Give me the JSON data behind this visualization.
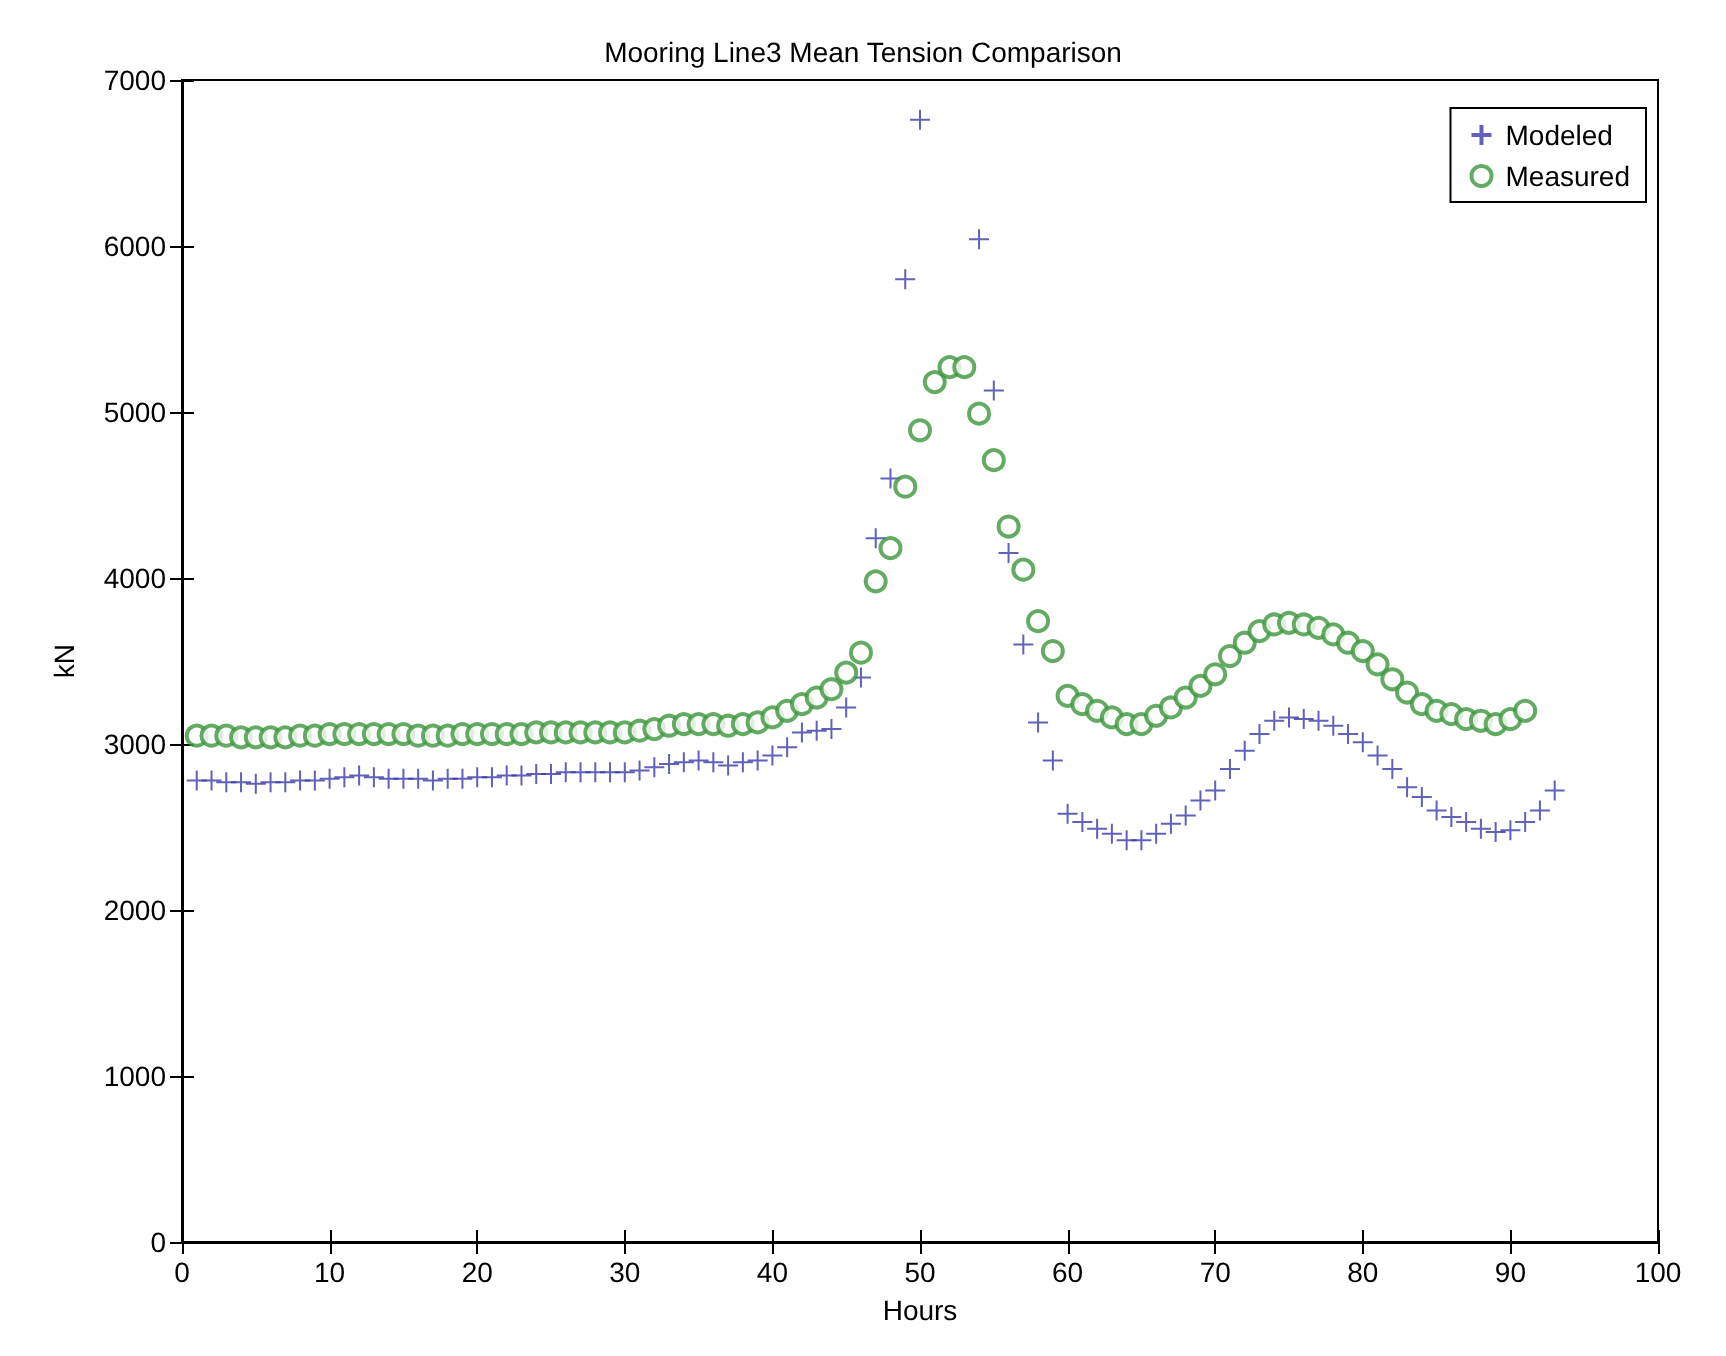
{
  "chart_data": {
    "type": "scatter",
    "title": "Mooring Line3 Mean Tension Comparison",
    "xlabel": "Hours",
    "ylabel": "kN",
    "xlim": [
      0,
      100
    ],
    "xticks": [
      0,
      10,
      20,
      30,
      40,
      50,
      60,
      70,
      80,
      90,
      100
    ],
    "ylim": [
      0,
      7000
    ],
    "yticks": [
      0,
      1000,
      2000,
      3000,
      4000,
      5000,
      6000,
      7000
    ],
    "grid": false,
    "legend": "top right",
    "series": [
      {
        "name": "Modeled",
        "color": "#3a3aa8",
        "marker": "cross",
        "x": [
          1,
          2,
          3,
          4,
          5,
          6,
          7,
          8,
          9,
          10,
          11,
          12,
          13,
          14,
          15,
          16,
          17,
          18,
          19,
          20,
          21,
          22,
          23,
          24,
          25,
          26,
          27,
          28,
          29,
          30,
          31,
          32,
          33,
          34,
          35,
          36,
          37,
          38,
          39,
          40,
          41,
          42,
          43,
          44,
          45,
          46,
          47,
          48,
          49,
          50,
          54,
          55,
          56,
          57,
          58,
          59,
          60,
          61,
          62,
          63,
          64,
          65,
          66,
          67,
          68,
          69,
          70,
          71,
          72,
          73,
          74,
          75,
          76,
          77,
          78,
          79,
          80,
          81,
          82,
          83,
          84,
          85,
          86,
          87,
          88,
          89,
          90,
          91,
          92,
          93
        ],
        "values": [
          2780,
          2780,
          2770,
          2770,
          2760,
          2770,
          2770,
          2780,
          2780,
          2790,
          2800,
          2810,
          2800,
          2790,
          2790,
          2790,
          2780,
          2790,
          2790,
          2800,
          2800,
          2810,
          2810,
          2820,
          2820,
          2830,
          2830,
          2830,
          2830,
          2830,
          2840,
          2860,
          2880,
          2890,
          2900,
          2890,
          2870,
          2890,
          2900,
          2930,
          2980,
          3070,
          3080,
          3090,
          3220,
          3400,
          4240,
          4600,
          5800,
          6760,
          6040,
          5130,
          4150,
          3600,
          3130,
          2900,
          2580,
          2530,
          2490,
          2460,
          2420,
          2420,
          2460,
          2520,
          2570,
          2660,
          2720,
          2850,
          2960,
          3060,
          3140,
          3160,
          3150,
          3140,
          3110,
          3060,
          3010,
          2930,
          2850,
          2740,
          2680,
          2600,
          2560,
          2530,
          2490,
          2470,
          2480,
          2530,
          2600,
          2720
        ]
      },
      {
        "name": "Measured",
        "color": "#3c963c",
        "marker": "circle",
        "x": [
          1,
          2,
          3,
          4,
          5,
          6,
          7,
          8,
          9,
          10,
          11,
          12,
          13,
          14,
          15,
          16,
          17,
          18,
          19,
          20,
          21,
          22,
          23,
          24,
          25,
          26,
          27,
          28,
          29,
          30,
          31,
          32,
          33,
          34,
          35,
          36,
          37,
          38,
          39,
          40,
          41,
          42,
          43,
          44,
          45,
          46,
          47,
          48,
          49,
          50,
          51,
          52,
          53,
          54,
          55,
          56,
          57,
          58,
          59,
          60,
          61,
          62,
          63,
          64,
          65,
          66,
          67,
          68,
          69,
          70,
          71,
          72,
          73,
          74,
          75,
          76,
          77,
          78,
          79,
          80,
          81,
          82,
          83,
          84,
          85,
          86,
          87,
          88,
          89,
          90,
          91
        ],
        "values": [
          3050,
          3050,
          3050,
          3040,
          3040,
          3040,
          3040,
          3050,
          3050,
          3060,
          3060,
          3060,
          3060,
          3060,
          3060,
          3050,
          3050,
          3050,
          3060,
          3060,
          3060,
          3060,
          3060,
          3070,
          3070,
          3070,
          3070,
          3070,
          3070,
          3070,
          3080,
          3090,
          3110,
          3120,
          3120,
          3120,
          3110,
          3120,
          3130,
          3160,
          3200,
          3240,
          3280,
          3330,
          3430,
          3550,
          3980,
          4180,
          4550,
          4890,
          5180,
          5270,
          5270,
          4990,
          4710,
          4310,
          4050,
          3740,
          3560,
          3290,
          3240,
          3200,
          3160,
          3120,
          3120,
          3170,
          3220,
          3280,
          3350,
          3420,
          3530,
          3610,
          3680,
          3720,
          3730,
          3720,
          3700,
          3660,
          3610,
          3560,
          3480,
          3390,
          3310,
          3240,
          3200,
          3180,
          3150,
          3140,
          3120,
          3150,
          3200
        ]
      }
    ]
  }
}
